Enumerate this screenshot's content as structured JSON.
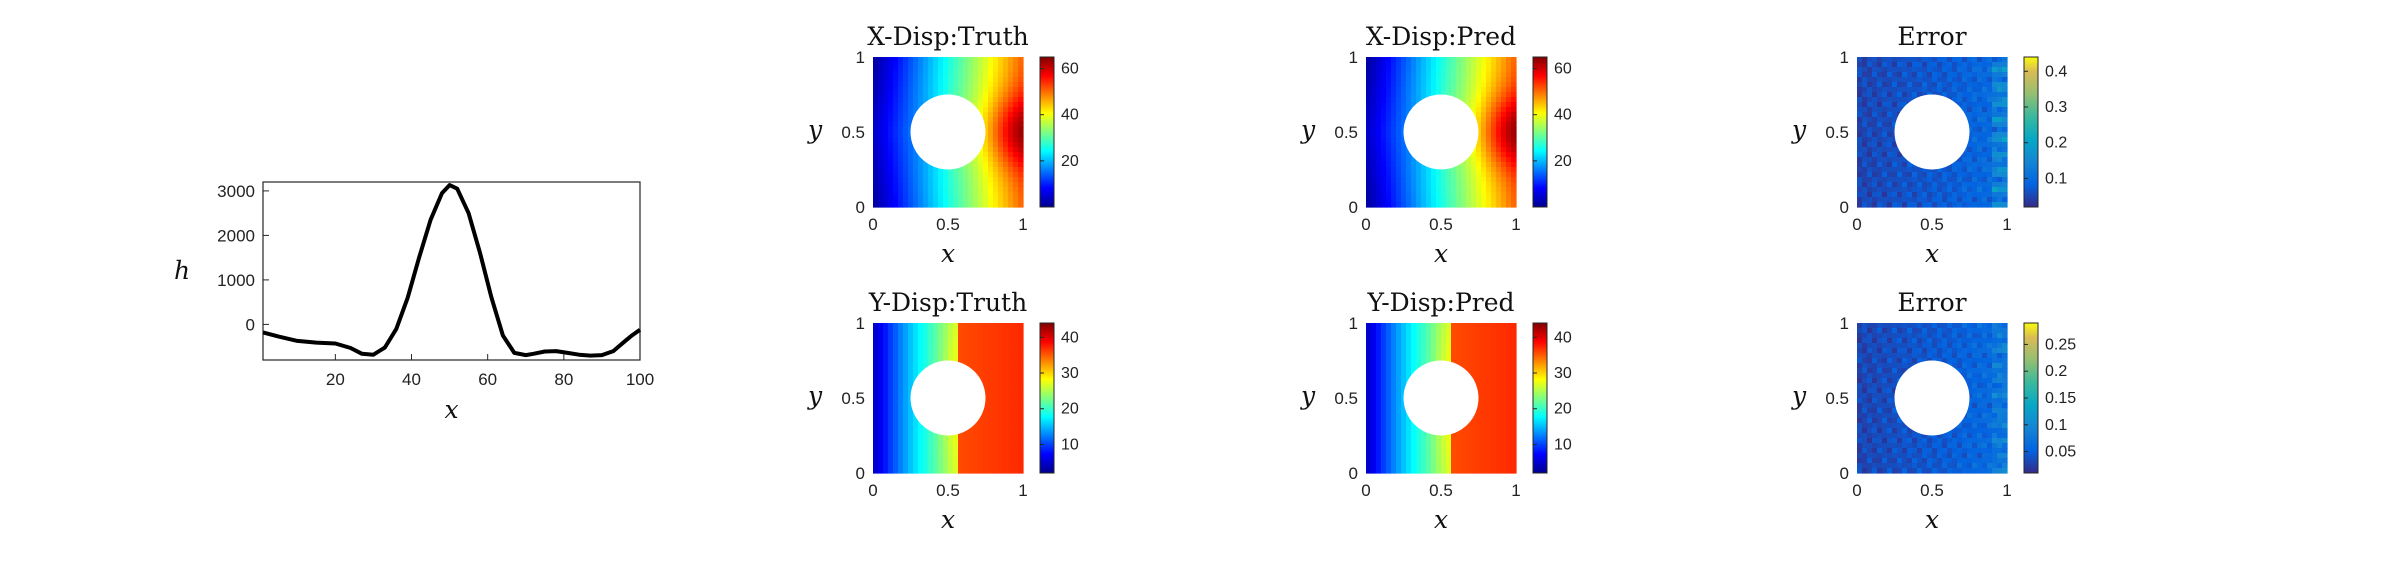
{
  "chart_data": [
    {
      "type": "line",
      "xlabel": "x",
      "ylabel": "h",
      "xlim": [
        1,
        100
      ],
      "ylim": [
        -800,
        3200
      ],
      "xticks": [
        20,
        40,
        60,
        80,
        100
      ],
      "yticks": [
        0,
        1000,
        2000,
        3000
      ],
      "grid": false,
      "x": [
        1,
        5,
        10,
        15,
        20,
        24,
        27,
        30,
        33,
        36,
        39,
        42,
        45,
        48,
        50,
        52,
        55,
        58,
        61,
        64,
        67,
        70,
        72,
        75,
        78,
        81,
        84,
        87,
        90,
        93,
        96,
        98,
        100
      ],
      "y": [
        -180,
        -270,
        -370,
        -410,
        -430,
        -530,
        -660,
        -680,
        -520,
        -100,
        600,
        1500,
        2350,
        2950,
        3130,
        3050,
        2500,
        1600,
        600,
        -250,
        -640,
        -690,
        -660,
        -610,
        -600,
        -640,
        -680,
        -700,
        -690,
        -600,
        -380,
        -240,
        -120
      ]
    },
    {
      "type": "heatmap",
      "title": "X-Disp:Truth",
      "xlabel": "x",
      "ylabel": "y",
      "xlim": [
        0,
        1
      ],
      "ylim": [
        0,
        1
      ],
      "xticks": [
        "0",
        "0.5",
        "1"
      ],
      "yticks": [
        "0",
        "0.5",
        "1"
      ],
      "colormap": "jet",
      "clim": [
        0,
        65
      ],
      "colorbar_ticks": [
        20,
        40,
        60
      ],
      "field": "x-displacement",
      "hole": {
        "center": [
          0.5,
          0.5
        ],
        "radius": 0.25
      }
    },
    {
      "type": "heatmap",
      "title": "X-Disp:Pred",
      "xlabel": "x",
      "ylabel": "y",
      "xlim": [
        0,
        1
      ],
      "ylim": [
        0,
        1
      ],
      "xticks": [
        "0",
        "0.5",
        "1"
      ],
      "yticks": [
        "0",
        "0.5",
        "1"
      ],
      "colormap": "jet",
      "clim": [
        0,
        65
      ],
      "colorbar_ticks": [
        20,
        40,
        60
      ],
      "field": "x-displacement",
      "hole": {
        "center": [
          0.5,
          0.5
        ],
        "radius": 0.25
      }
    },
    {
      "type": "heatmap",
      "title": "Error",
      "xlabel": "x",
      "ylabel": "y",
      "xlim": [
        0,
        1
      ],
      "ylim": [
        0,
        1
      ],
      "xticks": [
        "0",
        "0.5",
        "1"
      ],
      "yticks": [
        "0",
        "0.5",
        "1"
      ],
      "colormap": "parula",
      "clim": [
        0.02,
        0.44
      ],
      "colorbar_ticks": [
        0.1,
        0.2,
        0.3,
        0.4
      ],
      "field": "error-x",
      "hole": {
        "center": [
          0.5,
          0.5
        ],
        "radius": 0.25
      }
    },
    {
      "type": "heatmap",
      "title": "Y-Disp:Truth",
      "xlabel": "x",
      "ylabel": "y",
      "xlim": [
        0,
        1
      ],
      "ylim": [
        0,
        1
      ],
      "xticks": [
        "0",
        "0.5",
        "1"
      ],
      "yticks": [
        "0",
        "0.5",
        "1"
      ],
      "colormap": "jet",
      "clim": [
        2,
        44
      ],
      "colorbar_ticks": [
        10,
        20,
        30,
        40
      ],
      "field": "y-displacement",
      "hole": {
        "center": [
          0.5,
          0.5
        ],
        "radius": 0.25
      }
    },
    {
      "type": "heatmap",
      "title": "Y-Disp:Pred",
      "xlabel": "x",
      "ylabel": "y",
      "xlim": [
        0,
        1
      ],
      "ylim": [
        0,
        1
      ],
      "xticks": [
        "0",
        "0.5",
        "1"
      ],
      "yticks": [
        "0",
        "0.5",
        "1"
      ],
      "colormap": "jet",
      "clim": [
        2,
        44
      ],
      "colorbar_ticks": [
        10,
        20,
        30,
        40
      ],
      "field": "y-displacement",
      "hole": {
        "center": [
          0.5,
          0.5
        ],
        "radius": 0.25
      }
    },
    {
      "type": "heatmap",
      "title": "Error",
      "xlabel": "x",
      "ylabel": "y",
      "xlim": [
        0,
        1
      ],
      "ylim": [
        0,
        1
      ],
      "xticks": [
        "0",
        "0.5",
        "1"
      ],
      "yticks": [
        "0",
        "0.5",
        "1"
      ],
      "colormap": "parula",
      "clim": [
        0.01,
        0.29
      ],
      "colorbar_ticks": [
        0.05,
        0.1,
        0.15,
        0.2,
        0.25
      ],
      "colorbar_tick_labels": [
        "0.05",
        "0.1",
        "0.15",
        "0.2",
        "0.25"
      ],
      "field": "error-y",
      "hole": {
        "center": [
          0.5,
          0.5
        ],
        "radius": 0.25
      }
    }
  ]
}
